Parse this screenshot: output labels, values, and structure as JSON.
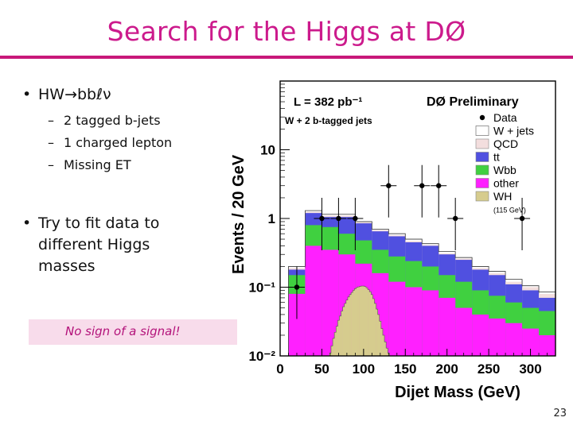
{
  "slide": {
    "title": "Search for the Higgs at DØ",
    "bullets": [
      {
        "dot": "•",
        "text": "HW→bbℓν",
        "subs": [
          "2 tagged b-jets",
          "1 charged lepton",
          "Missing ET"
        ]
      },
      {
        "dot": "•",
        "text": "Try to fit data to different Higgs masses"
      }
    ],
    "sub_dash": "–",
    "highlight": "No sign of a signal!",
    "page_number": "23",
    "colors": {
      "title": "#cc1a8c",
      "rule": "#c8187a",
      "highlight_bg": "#f8dceb",
      "highlight_text": "#b3127a"
    }
  },
  "chart_data": {
    "type": "histogram",
    "xlabel": "Dijet Mass (GeV)",
    "ylabel": "Events / 20 GeV",
    "xlim": [
      0,
      330
    ],
    "ylim": [
      0.01,
      100
    ],
    "log_y": true,
    "x_ticks": [
      "0",
      "50",
      "100",
      "150",
      "200",
      "250",
      "300"
    ],
    "y_ticks": [
      "10",
      "1",
      "10⁻¹",
      "10⁻²"
    ],
    "luminosity": "L = 382 pb⁻¹",
    "experiment": "DØ Preliminary",
    "selection": "W + 2 b-tagged jets",
    "legend": [
      {
        "label": "Data",
        "color": "#000000",
        "marker": "dot"
      },
      {
        "label": "W + jets",
        "color": "#ffffff"
      },
      {
        "label": "QCD",
        "color": "#f3dede"
      },
      {
        "label": "tt",
        "color": "#5050e0"
      },
      {
        "label": "Wbb",
        "color": "#40d040"
      },
      {
        "label": "other",
        "color": "#ff20ff"
      },
      {
        "label": "WH",
        "color": "#d6cc8e"
      }
    ],
    "legend_note": "(115 GeV)",
    "bins_x": [
      10,
      30,
      50,
      70,
      90,
      110,
      130,
      150,
      170,
      190,
      210,
      230,
      250,
      270,
      290,
      310,
      330
    ],
    "stack": [
      {
        "name": "other",
        "color": "#ff20ff",
        "values": [
          0.08,
          0.4,
          0.35,
          0.3,
          0.22,
          0.16,
          0.12,
          0.1,
          0.09,
          0.07,
          0.05,
          0.04,
          0.035,
          0.03,
          0.025,
          0.02
        ]
      },
      {
        "name": "Wbb",
        "color": "#40d040",
        "values": [
          0.15,
          0.8,
          0.75,
          0.6,
          0.48,
          0.35,
          0.28,
          0.24,
          0.2,
          0.15,
          0.12,
          0.09,
          0.075,
          0.06,
          0.05,
          0.045
        ]
      },
      {
        "name": "tt",
        "color": "#5050e0",
        "values": [
          0.18,
          1.2,
          1.05,
          1.05,
          0.85,
          0.65,
          0.55,
          0.45,
          0.4,
          0.3,
          0.25,
          0.18,
          0.15,
          0.11,
          0.09,
          0.07
        ]
      },
      {
        "name": "QCD",
        "color": "#f3dede",
        "values": [
          0.19,
          1.25,
          1.1,
          1.1,
          0.88,
          0.68,
          0.57,
          0.47,
          0.41,
          0.31,
          0.26,
          0.19,
          0.16,
          0.12,
          0.1,
          0.08
        ]
      },
      {
        "name": "W + jets",
        "color": "#ffffff",
        "values": [
          0.2,
          1.3,
          1.15,
          1.15,
          0.9,
          0.7,
          0.6,
          0.5,
          0.43,
          0.33,
          0.27,
          0.2,
          0.17,
          0.13,
          0.105,
          0.085
        ]
      }
    ],
    "signal": {
      "name": "WH",
      "color": "#d6cc8e",
      "x": [
        60,
        62,
        64,
        66,
        68,
        70,
        72,
        74,
        76,
        78,
        80,
        82,
        84,
        86,
        88,
        90,
        92,
        94,
        96,
        98,
        100,
        102,
        104,
        106,
        108,
        110,
        112,
        114,
        116,
        118,
        120,
        122,
        124,
        126,
        128,
        130,
        132,
        134,
        136,
        138,
        140,
        142,
        144,
        146,
        148
      ],
      "values": [
        0.011,
        0.014,
        0.018,
        0.022,
        0.027,
        0.033,
        0.038,
        0.045,
        0.052,
        0.058,
        0.065,
        0.072,
        0.078,
        0.084,
        0.09,
        0.095,
        0.099,
        0.101,
        0.103,
        0.104,
        0.104,
        0.102,
        0.098,
        0.092,
        0.086,
        0.078,
        0.068,
        0.058,
        0.048,
        0.04,
        0.032,
        0.025,
        0.02,
        0.016,
        0.013,
        0.011,
        0.01,
        0.01,
        0.01,
        0.01,
        0.01,
        0.01,
        0.01,
        0.01,
        0.01
      ]
    },
    "data_points": [
      {
        "x": 20,
        "y": 0.1
      },
      {
        "x": 50,
        "y": 1.0
      },
      {
        "x": 70,
        "y": 1.0
      },
      {
        "x": 90,
        "y": 1.0
      },
      {
        "x": 130,
        "y": 3.0
      },
      {
        "x": 170,
        "y": 3.0
      },
      {
        "x": 190,
        "y": 3.0
      },
      {
        "x": 210,
        "y": 1.0
      },
      {
        "x": 290,
        "y": 1.0
      }
    ]
  }
}
